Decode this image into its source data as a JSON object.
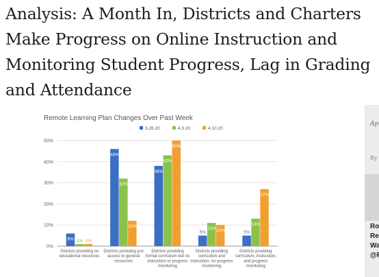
{
  "headline": "Analysis: A Month In, Districts and Charters Make Progress on Online Instruction and Monitoring Student Progress, Lag in Grading and Attendance",
  "sidebar": {
    "date_fragment": "Apr",
    "by_fragment": "By",
    "author_lines": [
      "Rob",
      "Rei",
      "Wa",
      "@R"
    ]
  },
  "colors": {
    "series_1": "#3a6fc4",
    "series_2": "#8bc34a",
    "series_3": "#f0a030",
    "grid": "#e2e2e2",
    "axis_text": "#666666",
    "title_text": "#555555"
  },
  "chart_data": {
    "type": "bar",
    "title": "Remote Learning Plan Changes Over Past Week",
    "xlabel": "",
    "ylabel": "",
    "ylim": [
      0,
      50
    ],
    "yticks": [
      "0%",
      "10%",
      "20%",
      "30%",
      "40%",
      "50%"
    ],
    "grid": true,
    "legend_position": "top-right",
    "categories": [
      [
        "Districts providing no",
        "educational resources"
      ],
      [
        "Districts providing just",
        "access to general",
        "resources"
      ],
      [
        "Districts providing",
        "formal curriculum but no",
        "instruction or progress",
        "monitoring"
      ],
      [
        "Districts providing",
        "curriculum and",
        "instruction, no progress",
        "monitoring"
      ],
      [
        "Districts providing",
        "curriculum, instruction,",
        "and progress",
        "monitoring"
      ]
    ],
    "series": [
      {
        "name": "3.26.20",
        "values": [
          6,
          46,
          38,
          5,
          5
        ],
        "labels": [
          "6%",
          "46%",
          "38%",
          "5%",
          "5%"
        ]
      },
      {
        "name": "4.3.20",
        "values": [
          1,
          32,
          43,
          11,
          13
        ],
        "labels": [
          "1%",
          "32%",
          "43%",
          "11%",
          "13%"
        ]
      },
      {
        "name": "4.10.20",
        "values": [
          1,
          12,
          50,
          10,
          27
        ],
        "labels": [
          "1%",
          "12%",
          "50%",
          "10%",
          "27%"
        ]
      }
    ]
  }
}
